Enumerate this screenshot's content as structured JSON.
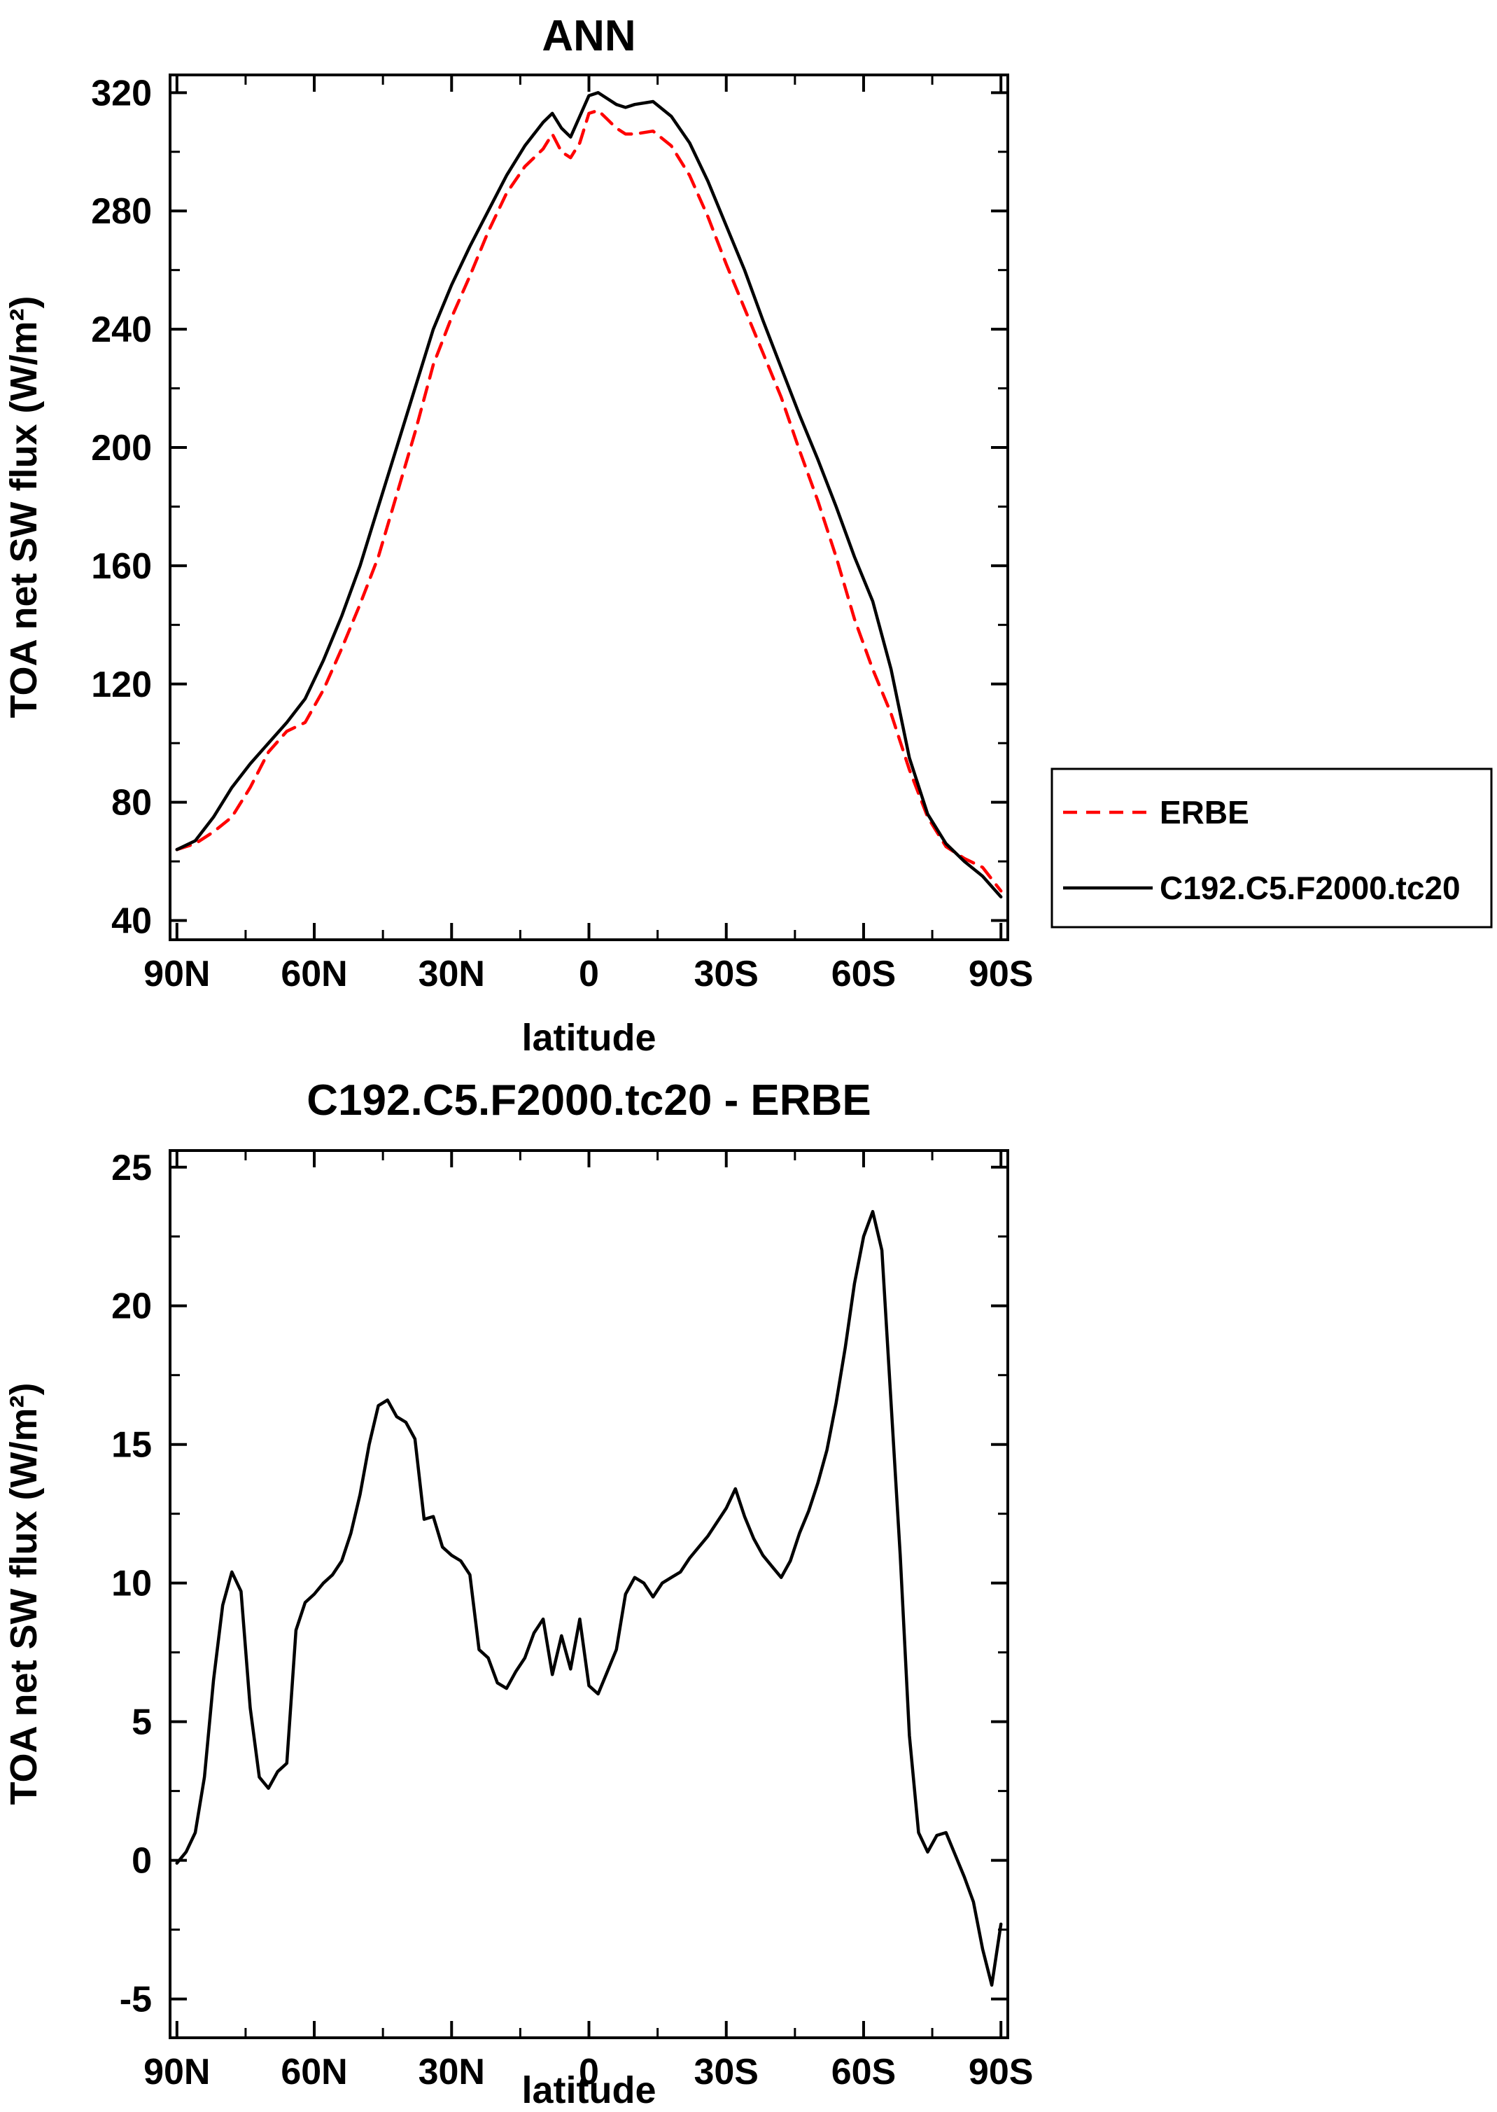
{
  "figure": {
    "background": "#ffffff",
    "erbe_color": "#ff0000",
    "model_color": "#000000"
  },
  "chart_data": [
    {
      "type": "line",
      "title": "ANN",
      "xlabel": "latitude",
      "ylabel": "TOA net SW flux (W/m²)",
      "xlim": [
        91.5,
        -91.5
      ],
      "ylim": [
        33.5,
        326
      ],
      "grid": false,
      "legend_position": "right-outside",
      "xticks": {
        "values": [
          90,
          60,
          30,
          0,
          -30,
          -60,
          -90
        ],
        "labels": [
          "90N",
          "60N",
          "30N",
          "0",
          "30S",
          "60S",
          "90S"
        ],
        "minor": [
          75,
          45,
          15,
          -15,
          -45,
          -75
        ]
      },
      "yticks": {
        "values": [
          40,
          80,
          120,
          160,
          200,
          240,
          280,
          320
        ],
        "labels": [
          "40",
          "80",
          "120",
          "160",
          "200",
          "240",
          "280",
          "320"
        ],
        "minor": [
          60,
          100,
          140,
          180,
          220,
          260,
          300
        ]
      },
      "x": [
        90,
        86,
        82,
        78,
        74,
        70,
        66,
        62,
        58,
        54,
        50,
        46,
        42,
        38,
        34,
        30,
        26,
        22,
        18,
        14,
        10,
        8,
        6,
        4,
        2,
        0,
        -2,
        -4,
        -6,
        -8,
        -10,
        -14,
        -18,
        -22,
        -26,
        -30,
        -34,
        -38,
        -42,
        -46,
        -50,
        -54,
        -58,
        -62,
        -66,
        -70,
        -74,
        -78,
        -82,
        -86,
        -90
      ],
      "series": [
        {
          "name": "ERBE",
          "color": "#ff0000",
          "dash": true,
          "values": [
            64,
            66,
            70,
            75,
            85,
            97,
            104,
            107,
            118,
            132,
            147,
            163,
            184,
            205,
            228,
            244,
            258,
            273,
            286,
            295,
            301,
            306,
            300,
            298,
            303,
            313,
            314,
            311,
            308,
            306,
            306,
            307,
            302,
            292,
            278,
            262,
            247,
            232,
            217,
            199,
            182,
            163,
            142,
            125,
            110,
            91,
            75,
            65,
            61,
            58,
            50
          ]
        },
        {
          "name": "C192.C5.F2000.tc20",
          "color": "#000000",
          "dash": false,
          "values": [
            64,
            67,
            75,
            85,
            93,
            100,
            107,
            115,
            128,
            143,
            160,
            180,
            200,
            220,
            240,
            255,
            268,
            280,
            292,
            302,
            310,
            313,
            308,
            305,
            312,
            319,
            320,
            318,
            316,
            315,
            316,
            317,
            312,
            303,
            290,
            275,
            260,
            243,
            227,
            211,
            196,
            180,
            163,
            148,
            125,
            95,
            76,
            66,
            60,
            55,
            48
          ]
        }
      ],
      "legend": {
        "entries": [
          {
            "label": "ERBE",
            "color": "#ff0000",
            "dash": true
          },
          {
            "label": "C192.C5.F2000.tc20",
            "color": "#000000",
            "dash": false
          }
        ]
      }
    },
    {
      "type": "line",
      "title": "C192.C5.F2000.tc20 - ERBE",
      "xlabel": "latitude",
      "ylabel": "TOA net SW flux (W/m²)",
      "xlim": [
        91.5,
        -91.5
      ],
      "ylim": [
        -6.4,
        25.6
      ],
      "grid": false,
      "xticks": {
        "values": [
          90,
          60,
          30,
          0,
          -30,
          -60,
          -90
        ],
        "labels": [
          "90N",
          "60N",
          "30N",
          "0",
          "30S",
          "60S",
          "90S"
        ],
        "minor": [
          75,
          45,
          15,
          -15,
          -45,
          -75
        ]
      },
      "yticks": {
        "values": [
          -5,
          0,
          5,
          10,
          15,
          20,
          25
        ],
        "labels": [
          "-5",
          "0",
          "5",
          "10",
          "15",
          "20",
          "25"
        ],
        "minor": [
          -2.5,
          2.5,
          7.5,
          12.5,
          17.5,
          22.5
        ]
      },
      "x": [
        90,
        88,
        86,
        84,
        82,
        80,
        78,
        76,
        74,
        72,
        70,
        68,
        66,
        64,
        62,
        60,
        58,
        56,
        54,
        52,
        50,
        48,
        46,
        44,
        42,
        40,
        38,
        36,
        34,
        32,
        30,
        28,
        26,
        24,
        22,
        20,
        18,
        16,
        14,
        12,
        10,
        8,
        6,
        4,
        2,
        0,
        -2,
        -4,
        -6,
        -8,
        -10,
        -12,
        -14,
        -16,
        -18,
        -20,
        -22,
        -24,
        -26,
        -28,
        -30,
        -32,
        -34,
        -36,
        -38,
        -40,
        -42,
        -44,
        -46,
        -48,
        -50,
        -52,
        -54,
        -56,
        -58,
        -60,
        -62,
        -64,
        -66,
        -68,
        -70,
        -72,
        -74,
        -76,
        -78,
        -80,
        -82,
        -84,
        -86,
        -88,
        -90
      ],
      "series": [
        {
          "name": "C192.C5.F2000.tc20 - ERBE",
          "color": "#000000",
          "dash": false,
          "values": [
            -0.1,
            0.3,
            1.0,
            3.0,
            6.5,
            9.2,
            10.4,
            9.7,
            5.5,
            3.0,
            2.6,
            3.2,
            3.5,
            8.3,
            9.3,
            9.6,
            10.0,
            10.3,
            10.8,
            11.8,
            13.2,
            15.0,
            16.4,
            16.6,
            16.0,
            15.8,
            15.2,
            12.3,
            12.4,
            11.3,
            11.0,
            10.8,
            10.3,
            7.6,
            7.3,
            6.4,
            6.2,
            6.8,
            7.3,
            8.2,
            8.7,
            6.7,
            8.1,
            6.9,
            8.7,
            6.3,
            6.0,
            6.8,
            7.6,
            9.6,
            10.2,
            10.0,
            9.5,
            10.0,
            10.2,
            10.4,
            10.9,
            11.3,
            11.7,
            12.2,
            12.7,
            13.4,
            12.4,
            11.6,
            11.0,
            10.6,
            10.2,
            10.8,
            11.8,
            12.6,
            13.6,
            14.8,
            16.5,
            18.5,
            20.8,
            22.5,
            23.4,
            22.0,
            16.5,
            11.0,
            4.5,
            1.0,
            0.3,
            0.9,
            1.0,
            0.2,
            -0.6,
            -1.5,
            -3.2,
            -4.5,
            -2.3
          ]
        }
      ]
    }
  ]
}
